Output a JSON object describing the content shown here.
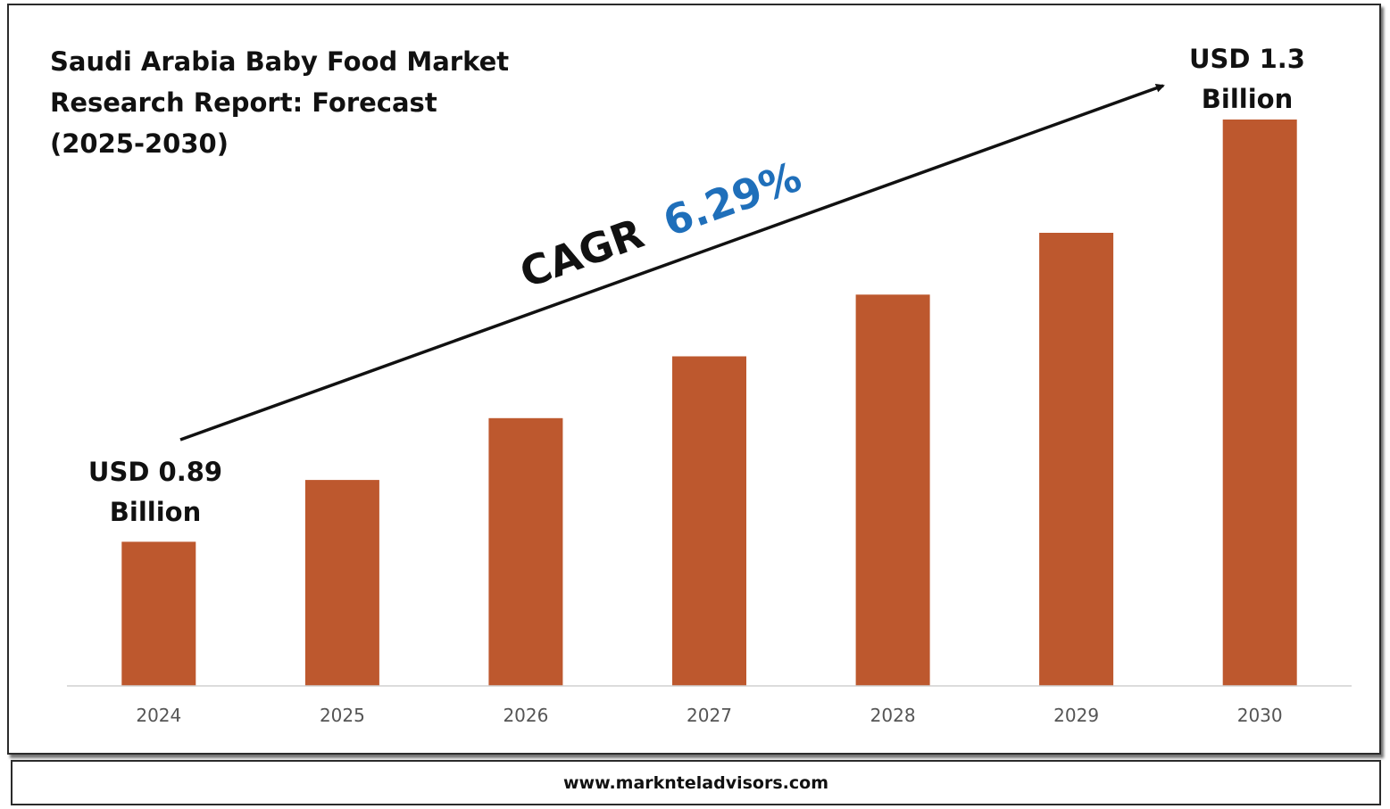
{
  "footer": {
    "url": "www.marknteladvisors.com"
  },
  "colors": {
    "bar": "#bd582e",
    "cagr_value": "#1f6fba",
    "text": "#111111",
    "axis": "#d0d0d0"
  },
  "chart_data": {
    "type": "bar",
    "title_lines": [
      "Saudi Arabia Baby Food Market",
      "Research Report: Forecast",
      "(2025-2030)"
    ],
    "categories": [
      "2024",
      "2025",
      "2026",
      "2027",
      "2028",
      "2029",
      "2030"
    ],
    "values": [
      0.89,
      0.95,
      1.01,
      1.07,
      1.13,
      1.19,
      1.3
    ],
    "unit": "USD Billion",
    "ylim": [
      0.75,
      1.3
    ],
    "grid": false,
    "legend": "none",
    "annotations": {
      "start": {
        "line1": "USD 0.89",
        "line2": "Billion"
      },
      "end": {
        "line1": "USD 1.3",
        "line2": "Billion"
      },
      "cagr": {
        "label": "CAGR",
        "value": "6.29%"
      }
    }
  }
}
